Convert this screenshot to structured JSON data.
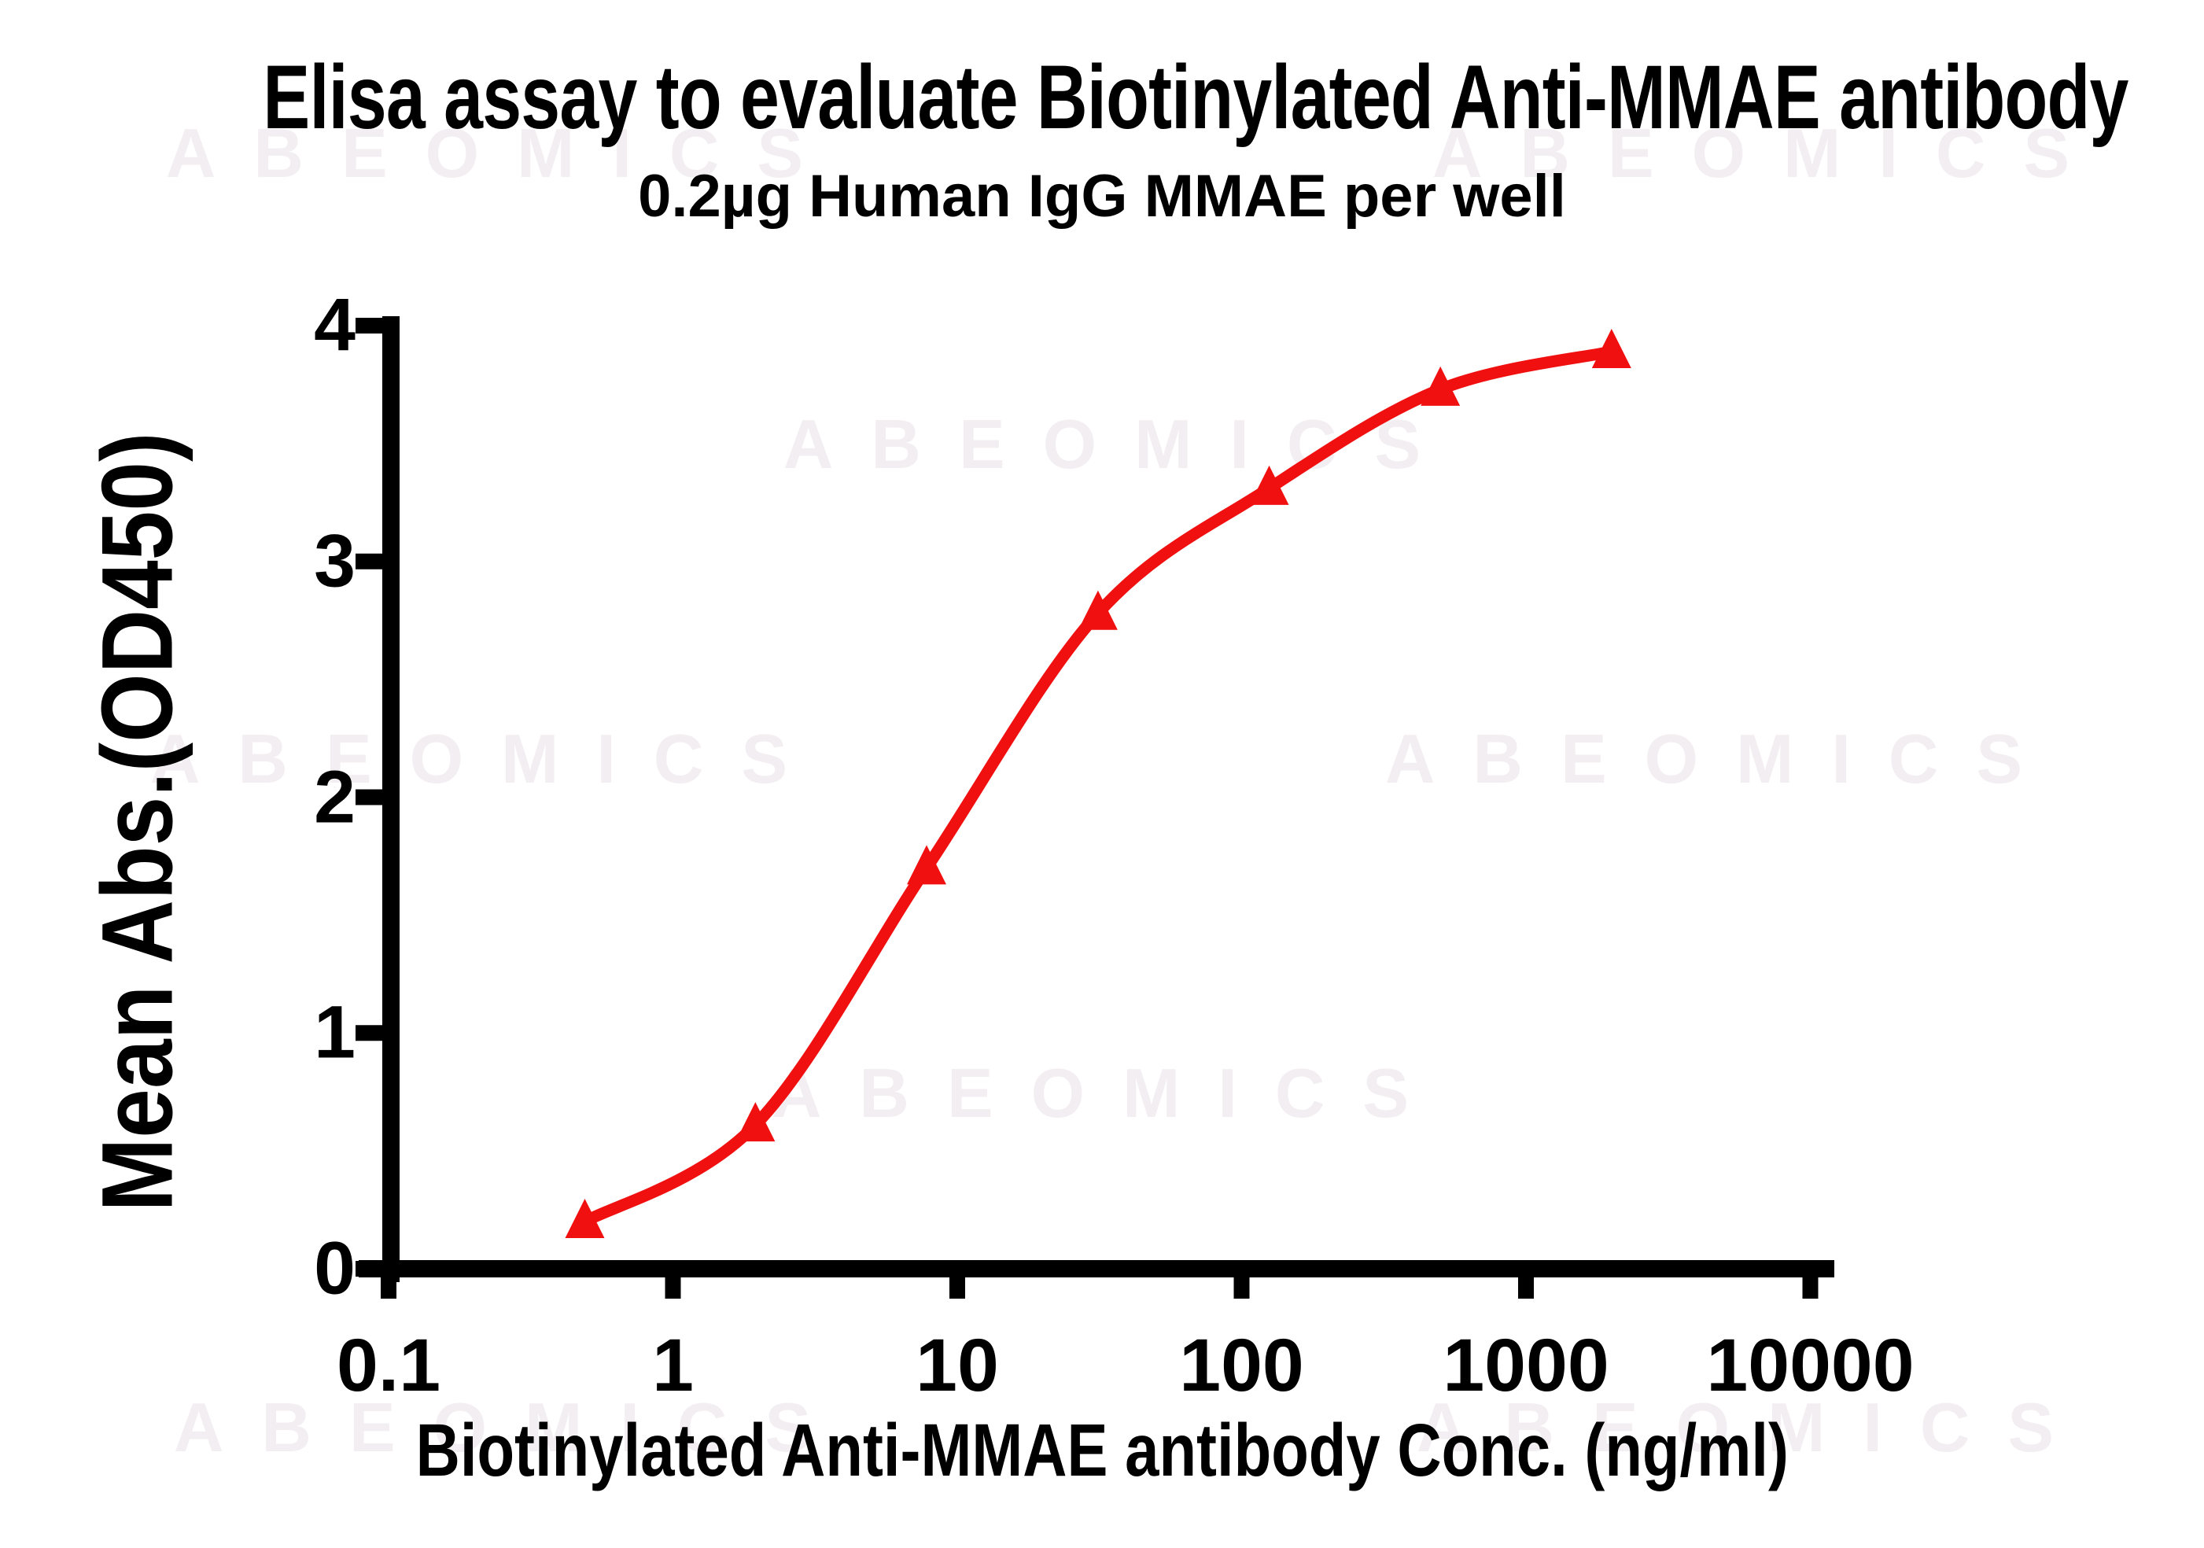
{
  "header": {
    "title": "Elisa assay to evaluate Biotinylated Anti-MMAE antibody",
    "subtitle": "0.2µg Human IgG MMAE per well"
  },
  "watermark": {
    "text": "ABEOMICS",
    "color": "#f3eef1"
  },
  "chart_data": {
    "type": "line",
    "title": "Elisa assay to evaluate Biotinylated Anti-MMAE antibody",
    "subtitle": "0.2µg Human IgG MMAE per well",
    "xlabel": "Biotinylated Anti-MMAE antibody Conc. (ng/ml)",
    "ylabel": "Mean Abs.(OD450)",
    "x_scale": "log10",
    "xlim": [
      0.1,
      10000
    ],
    "ylim": [
      0,
      4
    ],
    "x_ticks": [
      0.1,
      1,
      10,
      100,
      1000,
      10000
    ],
    "x_tick_labels": [
      "0.1",
      "1",
      "10",
      "100",
      "1000",
      "10000"
    ],
    "y_ticks": [
      0,
      1,
      2,
      3,
      4
    ],
    "y_tick_labels": [
      "0",
      "1",
      "2",
      "3",
      "4"
    ],
    "grid": false,
    "legend": false,
    "axis_color": "#000000",
    "series": [
      {
        "name": "Biotinylated Anti-MMAE antibody",
        "marker": "filled-triangle-up",
        "line": "smooth-sigmoid",
        "color": "#f01010",
        "x": [
          0.49,
          1.95,
          7.8,
          31.25,
          125,
          500,
          2000
        ],
        "y": [
          0.2,
          0.61,
          1.7,
          2.78,
          3.31,
          3.73,
          3.89
        ]
      }
    ]
  }
}
